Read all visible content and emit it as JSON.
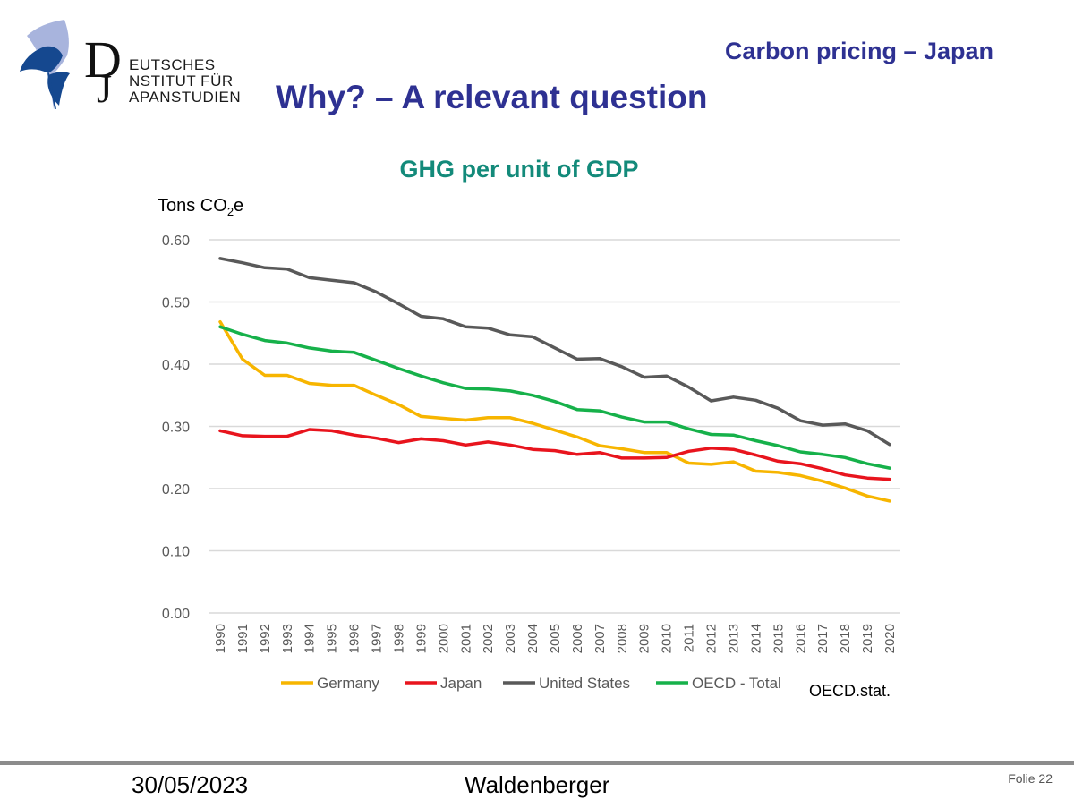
{
  "logo": {
    "line1": "EUTSCHES",
    "line2": "NSTITUT FÜR",
    "line3": "APANSTUDIEN"
  },
  "header": {
    "topic": "Carbon pricing – Japan",
    "slide_title": "Why? – A relevant question"
  },
  "source": "OECD.stat.",
  "footer": {
    "date": "30/05/2023",
    "author": "Waldenberger",
    "page": "Folie 22"
  },
  "colors": {
    "germany": "#f7b500",
    "japan": "#e8141d",
    "us": "#595959",
    "oecd": "#16b14a",
    "grid": "#d9d9d9"
  },
  "chart_data": {
    "type": "line",
    "title": "GHG per unit of GDP",
    "ylabel_main": "Tons CO",
    "ylabel_sub": "2",
    "ylabel_end": "e",
    "xlabel": "",
    "ylim": [
      0,
      0.6
    ],
    "yticks": [
      "0.00",
      "0.10",
      "0.20",
      "0.30",
      "0.40",
      "0.50",
      "0.60"
    ],
    "x": [
      "1990",
      "1991",
      "1992",
      "1993",
      "1994",
      "1995",
      "1996",
      "1997",
      "1998",
      "1999",
      "2000",
      "2001",
      "2002",
      "2003",
      "2004",
      "2005",
      "2006",
      "2007",
      "2008",
      "2009",
      "2010",
      "2011",
      "2012",
      "2013",
      "2014",
      "2015",
      "2016",
      "2017",
      "2018",
      "2019",
      "2020"
    ],
    "legend_position": "bottom",
    "series": [
      {
        "name": "Germany",
        "key": "germany",
        "values": [
          0.468,
          0.408,
          0.382,
          0.382,
          0.369,
          0.366,
          0.366,
          0.35,
          0.335,
          0.316,
          0.313,
          0.31,
          0.314,
          0.314,
          0.305,
          0.294,
          0.283,
          0.269,
          0.264,
          0.258,
          0.258,
          0.241,
          0.239,
          0.243,
          0.228,
          0.226,
          0.221,
          0.212,
          0.201,
          0.188,
          0.18
        ]
      },
      {
        "name": "Japan",
        "key": "japan",
        "values": [
          0.293,
          0.285,
          0.284,
          0.284,
          0.295,
          0.293,
          0.286,
          0.281,
          0.274,
          0.28,
          0.277,
          0.27,
          0.275,
          0.27,
          0.263,
          0.261,
          0.255,
          0.258,
          0.249,
          0.249,
          0.25,
          0.26,
          0.265,
          0.263,
          0.254,
          0.244,
          0.24,
          0.232,
          0.222,
          0.217,
          0.215
        ]
      },
      {
        "name": "United States",
        "key": "us",
        "values": [
          0.57,
          0.563,
          0.555,
          0.553,
          0.539,
          0.535,
          0.531,
          0.516,
          0.497,
          0.477,
          0.473,
          0.46,
          0.458,
          0.447,
          0.444,
          0.426,
          0.408,
          0.409,
          0.396,
          0.379,
          0.381,
          0.363,
          0.341,
          0.347,
          0.342,
          0.329,
          0.309,
          0.302,
          0.304,
          0.293,
          0.271
        ]
      },
      {
        "name": "OECD - Total",
        "key": "oecd",
        "values": [
          0.46,
          0.448,
          0.438,
          0.434,
          0.426,
          0.421,
          0.419,
          0.406,
          0.393,
          0.381,
          0.37,
          0.361,
          0.36,
          0.357,
          0.35,
          0.34,
          0.327,
          0.325,
          0.315,
          0.307,
          0.307,
          0.296,
          0.287,
          0.286,
          0.277,
          0.269,
          0.259,
          0.255,
          0.25,
          0.24,
          0.233
        ]
      }
    ]
  }
}
